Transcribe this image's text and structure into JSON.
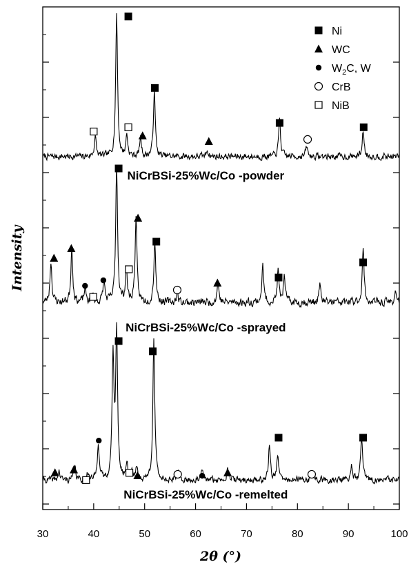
{
  "chart_data": {
    "type": "line",
    "xlabel": "2θ (°)",
    "ylabel": "Intensity",
    "xlim": [
      30,
      100
    ],
    "x_ticks": [
      "30",
      "40",
      "50",
      "60",
      "70",
      "80",
      "90",
      "100"
    ],
    "grid": false,
    "legend_position": "top-right",
    "legend": [
      {
        "marker": "filled-square",
        "label": "Ni"
      },
      {
        "marker": "filled-triangle",
        "label": "WC"
      },
      {
        "marker": "filled-circle",
        "label": "W",
        "sub": "2",
        "label_rest": "C, W"
      },
      {
        "marker": "open-circle",
        "label": "CrB"
      },
      {
        "marker": "open-square",
        "label": "NiB"
      }
    ],
    "series": [
      {
        "name": "NiCrBSi-25%Wc/Co -powder",
        "baseline": 0.04,
        "noise": 0.035,
        "seed": 7,
        "peaks": [
          {
            "x": 40.3,
            "h": 0.14
          },
          {
            "x": 44.5,
            "h": 1.0
          },
          {
            "x": 46.5,
            "h": 0.15
          },
          {
            "x": 49.2,
            "h": 0.13
          },
          {
            "x": 51.9,
            "h": 0.46
          },
          {
            "x": 62.3,
            "h": 0.05
          },
          {
            "x": 76.5,
            "h": 0.26
          },
          {
            "x": 81.8,
            "h": 0.07
          },
          {
            "x": 92.9,
            "h": 0.18
          }
        ],
        "markers": [
          {
            "x": 40.0,
            "y": 0.215,
            "type": "open-square"
          },
          {
            "x": 46.8,
            "y": 1.02,
            "type": "filled-square"
          },
          {
            "x": 46.8,
            "y": 0.245,
            "type": "open-square"
          },
          {
            "x": 49.6,
            "y": 0.185,
            "type": "filled-triangle"
          },
          {
            "x": 52.0,
            "y": 0.52,
            "type": "filled-square"
          },
          {
            "x": 62.6,
            "y": 0.145,
            "type": "filled-triangle"
          },
          {
            "x": 76.5,
            "y": 0.275,
            "type": "filled-square"
          },
          {
            "x": 82.0,
            "y": 0.16,
            "type": "open-circle"
          },
          {
            "x": 93.0,
            "y": 0.245,
            "type": "filled-square"
          }
        ]
      },
      {
        "name": "NiCrBSi-25%Wc/Co -sprayed",
        "baseline": 0.06,
        "noise": 0.045,
        "seed": 23,
        "peaks": [
          {
            "x": 31.6,
            "h": 0.3
          },
          {
            "x": 35.7,
            "h": 0.4
          },
          {
            "x": 38.3,
            "h": 0.1
          },
          {
            "x": 39.8,
            "h": 0.06
          },
          {
            "x": 42.0,
            "h": 0.16
          },
          {
            "x": 44.5,
            "h": 1.0
          },
          {
            "x": 46.4,
            "h": 0.24
          },
          {
            "x": 48.3,
            "h": 0.6
          },
          {
            "x": 52.0,
            "h": 0.45
          },
          {
            "x": 56.4,
            "h": 0.07
          },
          {
            "x": 64.4,
            "h": 0.15
          },
          {
            "x": 73.2,
            "h": 0.26
          },
          {
            "x": 76.2,
            "h": 0.22
          },
          {
            "x": 77.4,
            "h": 0.18
          },
          {
            "x": 84.4,
            "h": 0.12
          },
          {
            "x": 92.9,
            "h": 0.38
          },
          {
            "x": 99.3,
            "h": 0.09
          }
        ],
        "markers": [
          {
            "x": 32.2,
            "y": 0.38,
            "type": "filled-triangle"
          },
          {
            "x": 35.6,
            "y": 0.45,
            "type": "filled-triangle"
          },
          {
            "x": 38.3,
            "y": 0.18,
            "type": "filled-circle"
          },
          {
            "x": 39.9,
            "y": 0.1,
            "type": "open-square"
          },
          {
            "x": 41.9,
            "y": 0.22,
            "type": "filled-circle"
          },
          {
            "x": 44.9,
            "y": 1.03,
            "type": "filled-square"
          },
          {
            "x": 46.9,
            "y": 0.3,
            "type": "open-square"
          },
          {
            "x": 48.7,
            "y": 0.67,
            "type": "filled-triangle"
          },
          {
            "x": 52.3,
            "y": 0.5,
            "type": "filled-square"
          },
          {
            "x": 56.4,
            "y": 0.15,
            "type": "open-circle"
          },
          {
            "x": 64.3,
            "y": 0.2,
            "type": "filled-triangle"
          },
          {
            "x": 76.3,
            "y": 0.24,
            "type": "filled-square"
          },
          {
            "x": 92.9,
            "y": 0.35,
            "type": "filled-square"
          }
        ]
      },
      {
        "name": "NiCrBSi-25%Wc/Co -remelted",
        "baseline": 0.05,
        "noise": 0.035,
        "seed": 41,
        "peaks": [
          {
            "x": 33.2,
            "h": 0.06
          },
          {
            "x": 36.3,
            "h": 0.09
          },
          {
            "x": 38.8,
            "h": 0.05
          },
          {
            "x": 40.9,
            "h": 0.26
          },
          {
            "x": 43.8,
            "h": 0.84
          },
          {
            "x": 44.5,
            "h": 1.0
          },
          {
            "x": 46.5,
            "h": 0.12
          },
          {
            "x": 47.5,
            "h": 0.06
          },
          {
            "x": 48.4,
            "h": 0.09
          },
          {
            "x": 51.8,
            "h": 0.97
          },
          {
            "x": 56.5,
            "h": 0.05
          },
          {
            "x": 61.3,
            "h": 0.06
          },
          {
            "x": 66.3,
            "h": 0.1
          },
          {
            "x": 74.5,
            "h": 0.24
          },
          {
            "x": 76.1,
            "h": 0.17
          },
          {
            "x": 82.9,
            "h": 0.05
          },
          {
            "x": 90.6,
            "h": 0.1
          },
          {
            "x": 92.6,
            "h": 0.3
          }
        ],
        "markers": [
          {
            "x": 32.4,
            "y": 0.1,
            "type": "filled-triangle"
          },
          {
            "x": 36.1,
            "y": 0.12,
            "type": "filled-triangle"
          },
          {
            "x": 38.5,
            "y": 0.05,
            "type": "open-square"
          },
          {
            "x": 41.0,
            "y": 0.32,
            "type": "filled-circle"
          },
          {
            "x": 44.9,
            "y": 1.0,
            "type": "filled-square"
          },
          {
            "x": 47.0,
            "y": 0.1,
            "type": "open-square"
          },
          {
            "x": 48.6,
            "y": 0.08,
            "type": "filled-triangle"
          },
          {
            "x": 51.6,
            "y": 0.93,
            "type": "filled-square"
          },
          {
            "x": 56.5,
            "y": 0.09,
            "type": "open-circle"
          },
          {
            "x": 61.3,
            "y": 0.08,
            "type": "filled-circle"
          },
          {
            "x": 66.3,
            "y": 0.1,
            "type": "filled-triangle"
          },
          {
            "x": 76.3,
            "y": 0.34,
            "type": "filled-square"
          },
          {
            "x": 82.8,
            "y": 0.09,
            "type": "open-circle"
          },
          {
            "x": 92.9,
            "y": 0.34,
            "type": "filled-square"
          }
        ]
      }
    ]
  }
}
